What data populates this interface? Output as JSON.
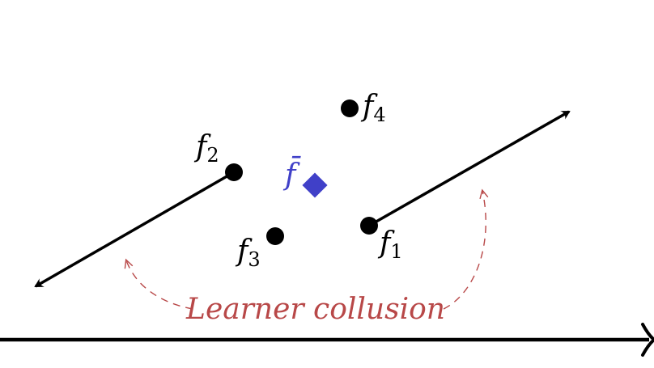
{
  "points": [
    {
      "id": "f1",
      "symbol": "f",
      "subscript": "1"
    },
    {
      "id": "f2",
      "symbol": "f",
      "subscript": "2"
    },
    {
      "id": "f3",
      "symbol": "f",
      "subscript": "3"
    },
    {
      "id": "f4",
      "symbol": "f",
      "subscript": "4"
    }
  ],
  "mean": {
    "symbol": "f̄"
  },
  "annotation": {
    "label": "Learner collusion"
  },
  "colors": {
    "points": "#000000",
    "mean": "#4040c8",
    "collusion": "#b84848",
    "axis": "#000000"
  }
}
